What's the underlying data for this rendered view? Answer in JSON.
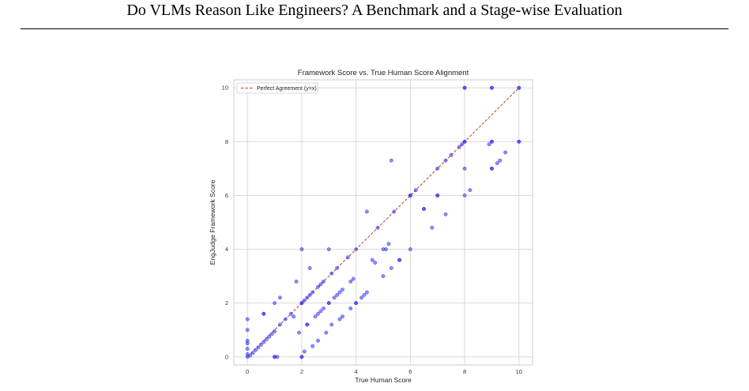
{
  "paper": {
    "running_title": "Do VLMs Reason Like Engineers? A Benchmark and a Stage-wise Evaluation"
  },
  "chart_data": {
    "type": "scatter",
    "title": "Framework Score vs. True Human Score Alignment",
    "xlabel": "True Human Score",
    "ylabel": "EngJudge Framework Score",
    "xlim": [
      -0.5,
      10.5
    ],
    "ylim": [
      -0.3,
      10.3
    ],
    "xticks": [
      0,
      2,
      4,
      6,
      8,
      10
    ],
    "yticks": [
      0,
      2,
      4,
      6,
      8,
      10
    ],
    "grid": true,
    "legend": {
      "placement": "top-left",
      "entries": [
        "Perfect Agreement (y=x)"
      ]
    },
    "reference_line": {
      "label": "Perfect Agreement (y=x)",
      "from": [
        0,
        0
      ],
      "to": [
        10,
        10
      ],
      "color": "#c0392b",
      "style": "dashed"
    },
    "point_color": "#2f2ff0",
    "points": [
      [
        0,
        0
      ],
      [
        0,
        0.1
      ],
      [
        0,
        0.3
      ],
      [
        0,
        0.5
      ],
      [
        0,
        0.6
      ],
      [
        0,
        1.0
      ],
      [
        0,
        1.4
      ],
      [
        0.1,
        0.05
      ],
      [
        0.2,
        0.15
      ],
      [
        0.3,
        0.25
      ],
      [
        0.4,
        0.35
      ],
      [
        0.5,
        0.45
      ],
      [
        0.6,
        0.55
      ],
      [
        0.7,
        0.65
      ],
      [
        0.8,
        0.75
      ],
      [
        0.9,
        0.85
      ],
      [
        1.0,
        0.95
      ],
      [
        0.6,
        1.6
      ],
      [
        0.6,
        1.6
      ],
      [
        1.0,
        0
      ],
      [
        1.0,
        0
      ],
      [
        1.1,
        0
      ],
      [
        1.0,
        2.0
      ],
      [
        1.2,
        1.2
      ],
      [
        1.2,
        2.2
      ],
      [
        1.4,
        1.4
      ],
      [
        1.6,
        1.6
      ],
      [
        1.7,
        1.5
      ],
      [
        1.8,
        2.8
      ],
      [
        1.9,
        0.9
      ],
      [
        2.0,
        0
      ],
      [
        2.0,
        0
      ],
      [
        2.0,
        2.0
      ],
      [
        2.0,
        2.0
      ],
      [
        2.0,
        4.0
      ],
      [
        2.1,
        2.1
      ],
      [
        2.1,
        0.2
      ],
      [
        2.2,
        2.2
      ],
      [
        2.2,
        1.2
      ],
      [
        2.2,
        1.2
      ],
      [
        2.3,
        3.3
      ],
      [
        2.3,
        2.3
      ],
      [
        2.4,
        0.4
      ],
      [
        2.4,
        2.4
      ],
      [
        2.5,
        1.5
      ],
      [
        2.6,
        2.6
      ],
      [
        2.6,
        0.6
      ],
      [
        2.6,
        1.6
      ],
      [
        2.7,
        2.7
      ],
      [
        2.7,
        1.7
      ],
      [
        2.8,
        2.8
      ],
      [
        2.8,
        1.8
      ],
      [
        2.9,
        0.9
      ],
      [
        3.0,
        4.0
      ],
      [
        3.0,
        2.0
      ],
      [
        3.0,
        2.0
      ],
      [
        3.1,
        3.1
      ],
      [
        3.1,
        1.2
      ],
      [
        3.2,
        2.2
      ],
      [
        3.3,
        2.3
      ],
      [
        3.3,
        3.3
      ],
      [
        3.4,
        2.4
      ],
      [
        3.4,
        1.4
      ],
      [
        3.5,
        2.5
      ],
      [
        3.5,
        1.5
      ],
      [
        3.7,
        3.7
      ],
      [
        3.8,
        1.8
      ],
      [
        3.8,
        2.8
      ],
      [
        3.9,
        2.9
      ],
      [
        4.0,
        4.0
      ],
      [
        4.0,
        2.0
      ],
      [
        4.0,
        2.0
      ],
      [
        4.2,
        2.2
      ],
      [
        4.3,
        2.3
      ],
      [
        4.4,
        2.4
      ],
      [
        4.4,
        5.4
      ],
      [
        4.6,
        3.6
      ],
      [
        4.7,
        3.5
      ],
      [
        4.8,
        4.8
      ],
      [
        5.0,
        3.0
      ],
      [
        5.0,
        4.0
      ],
      [
        5.1,
        4.0
      ],
      [
        5.2,
        4.2
      ],
      [
        5.3,
        3.3
      ],
      [
        5.3,
        7.3
      ],
      [
        5.4,
        5.4
      ],
      [
        5.6,
        3.6
      ],
      [
        5.6,
        3.6
      ],
      [
        6.0,
        4.0
      ],
      [
        6.0,
        6.0
      ],
      [
        6.0,
        6.0
      ],
      [
        6.2,
        6.2
      ],
      [
        6.5,
        5.5
      ],
      [
        6.5,
        5.5
      ],
      [
        6.8,
        4.8
      ],
      [
        7.0,
        6.0
      ],
      [
        7.0,
        6.0
      ],
      [
        7.0,
        7.0
      ],
      [
        7.3,
        7.3
      ],
      [
        7.3,
        5.3
      ],
      [
        7.5,
        7.5
      ],
      [
        7.8,
        7.8
      ],
      [
        7.9,
        7.9
      ],
      [
        8.0,
        10.0
      ],
      [
        8.0,
        10.0
      ],
      [
        8.0,
        8.0
      ],
      [
        8.0,
        8.0
      ],
      [
        8.0,
        6.0
      ],
      [
        8.0,
        7.0
      ],
      [
        8.2,
        6.2
      ],
      [
        9.0,
        10.0
      ],
      [
        9.0,
        10.0
      ],
      [
        9.0,
        8.0
      ],
      [
        9.0,
        8.0
      ],
      [
        9.0,
        7.0
      ],
      [
        9.0,
        7.0
      ],
      [
        8.9,
        7.9
      ],
      [
        9.2,
        7.2
      ],
      [
        9.3,
        7.3
      ],
      [
        9.5,
        7.6
      ],
      [
        10.0,
        10.0
      ],
      [
        10.0,
        10.0
      ],
      [
        10.0,
        8.0
      ],
      [
        10.0,
        8.0
      ]
    ]
  }
}
